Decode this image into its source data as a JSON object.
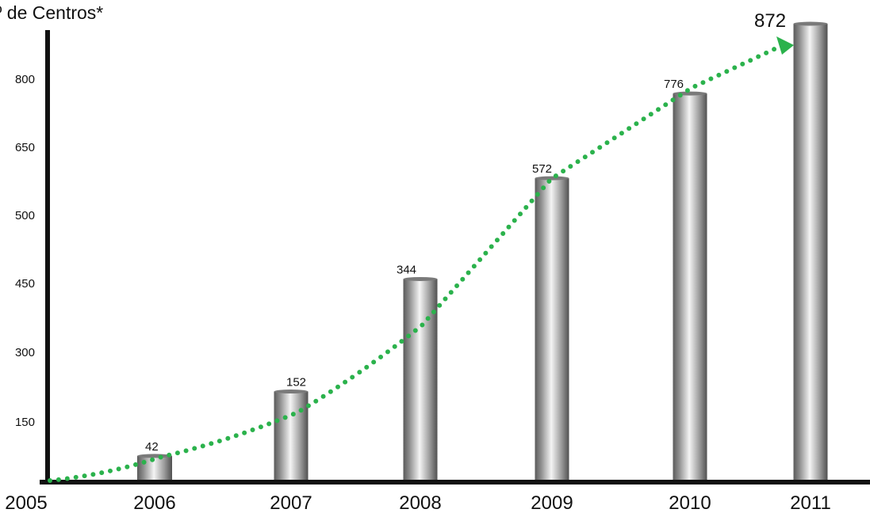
{
  "colors": {
    "axis": "#111111",
    "trend": "#2bb24c",
    "bar_dark": "#5a5a5a",
    "bar_light": "#f2f2f2"
  },
  "chart_data": {
    "type": "bar",
    "title": "º de Centros*",
    "categories": [
      "2005",
      "2006",
      "2007",
      "2008",
      "2009",
      "2010",
      "2011"
    ],
    "values": [
      0,
      42,
      152,
      344,
      572,
      776,
      872
    ],
    "y_tick_labels": [
      "150",
      "300",
      "450",
      "500",
      "650",
      "800"
    ],
    "value_labels": [
      "",
      "42",
      "152",
      "344",
      "572",
      "776",
      "872"
    ],
    "trend_line": {
      "style": "dotted",
      "arrow_at_end": true
    },
    "grid": false,
    "legend": "none"
  }
}
